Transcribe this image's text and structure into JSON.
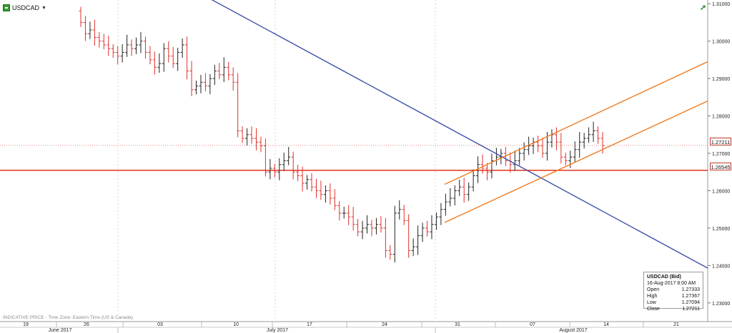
{
  "symbol": {
    "name": "USDCAD",
    "menu_caret": "▼",
    "icon": "chart-icon"
  },
  "corner_icon": "arrow-up-right-icon",
  "corner_glyph": "➚",
  "indicative": "INDICATIVE PRICE - Time Zone: Eastern Time (US & Canada)",
  "info_box": {
    "title": "USDCAD (Bid)",
    "datetime": "16-Aug-2017 8:00 AM",
    "rows": [
      {
        "label": "Open",
        "value": "1.27333"
      },
      {
        "label": "High",
        "value": "1.27367"
      },
      {
        "label": "Low",
        "value": "1.27094"
      },
      {
        "label": "Close",
        "value": "1.27211"
      }
    ]
  },
  "price_tags": {
    "current": "1.27211",
    "support": "1.26545"
  },
  "colors": {
    "bull": "#222222",
    "bear": "#e0302a",
    "trend_down": "#3f51a8",
    "channel": "#f07a1e",
    "support": "#e0301f",
    "current_line": "#e07070",
    "grid": "#d6d6d6"
  },
  "chart_data": {
    "type": "candlestick",
    "title": "USDCAD",
    "ylim": [
      1.225,
      1.311
    ],
    "y_ticks": [
      "1.31000",
      "1.30000",
      "1.29000",
      "1.28000",
      "1.27000",
      "1.26000",
      "1.25000",
      "1.24000",
      "1.23000"
    ],
    "x_ticks": [
      "19",
      "26",
      "03",
      "10",
      "17",
      "24",
      "31",
      "07",
      "14",
      "21"
    ],
    "x_months": [
      "June 2017",
      "July 2017",
      "August 2017"
    ],
    "current_price": 1.27211,
    "support_level": 1.26545,
    "trendlines": [
      {
        "name": "downtrend",
        "color": "blue",
        "from": [
          "20-Jun-2017",
          1.314
        ],
        "to": [
          "25-Aug-2017",
          1.2393
        ]
      },
      {
        "name": "channel-upper",
        "color": "orange",
        "from": [
          "2-Aug-2017",
          1.2617
        ],
        "to": [
          "25-Aug-2017",
          1.2945
        ]
      },
      {
        "name": "channel-lower",
        "color": "orange",
        "from": [
          "2-Aug-2017",
          1.2515
        ],
        "to": [
          "25-Aug-2017",
          1.284
        ]
      }
    ],
    "series_close": [
      1.305,
      1.302,
      1.303,
      1.301,
      1.3,
      1.299,
      1.298,
      1.297,
      1.296,
      1.297,
      1.299,
      1.298,
      1.299,
      1.3,
      1.297,
      1.295,
      1.293,
      1.294,
      1.298,
      1.296,
      1.294,
      1.297,
      1.299,
      1.292,
      1.287,
      1.288,
      1.289,
      1.288,
      1.29,
      1.292,
      1.291,
      1.293,
      1.291,
      1.289,
      1.276,
      1.274,
      1.275,
      1.274,
      1.273,
      1.272,
      1.265,
      1.266,
      1.265,
      1.267,
      1.268,
      1.269,
      1.265,
      1.264,
      1.262,
      1.263,
      1.261,
      1.26,
      1.259,
      1.26,
      1.258,
      1.256,
      1.254,
      1.254,
      1.253,
      1.251,
      1.249,
      1.25,
      1.251,
      1.25,
      1.251,
      1.25,
      1.244,
      1.243,
      1.254,
      1.255,
      1.252,
      1.244,
      1.245,
      1.248,
      1.25,
      1.249,
      1.251,
      1.253,
      1.255,
      1.257,
      1.258,
      1.26,
      1.261,
      1.259,
      1.261,
      1.264,
      1.267,
      1.266,
      1.265,
      1.268,
      1.269,
      1.27,
      1.268,
      1.267,
      1.268,
      1.27,
      1.271,
      1.272,
      1.273,
      1.272,
      1.27,
      1.273,
      1.275,
      1.273,
      1.269,
      1.268,
      1.269,
      1.271,
      1.273,
      1.274,
      1.275,
      1.276,
      1.274,
      1.2721
    ]
  }
}
